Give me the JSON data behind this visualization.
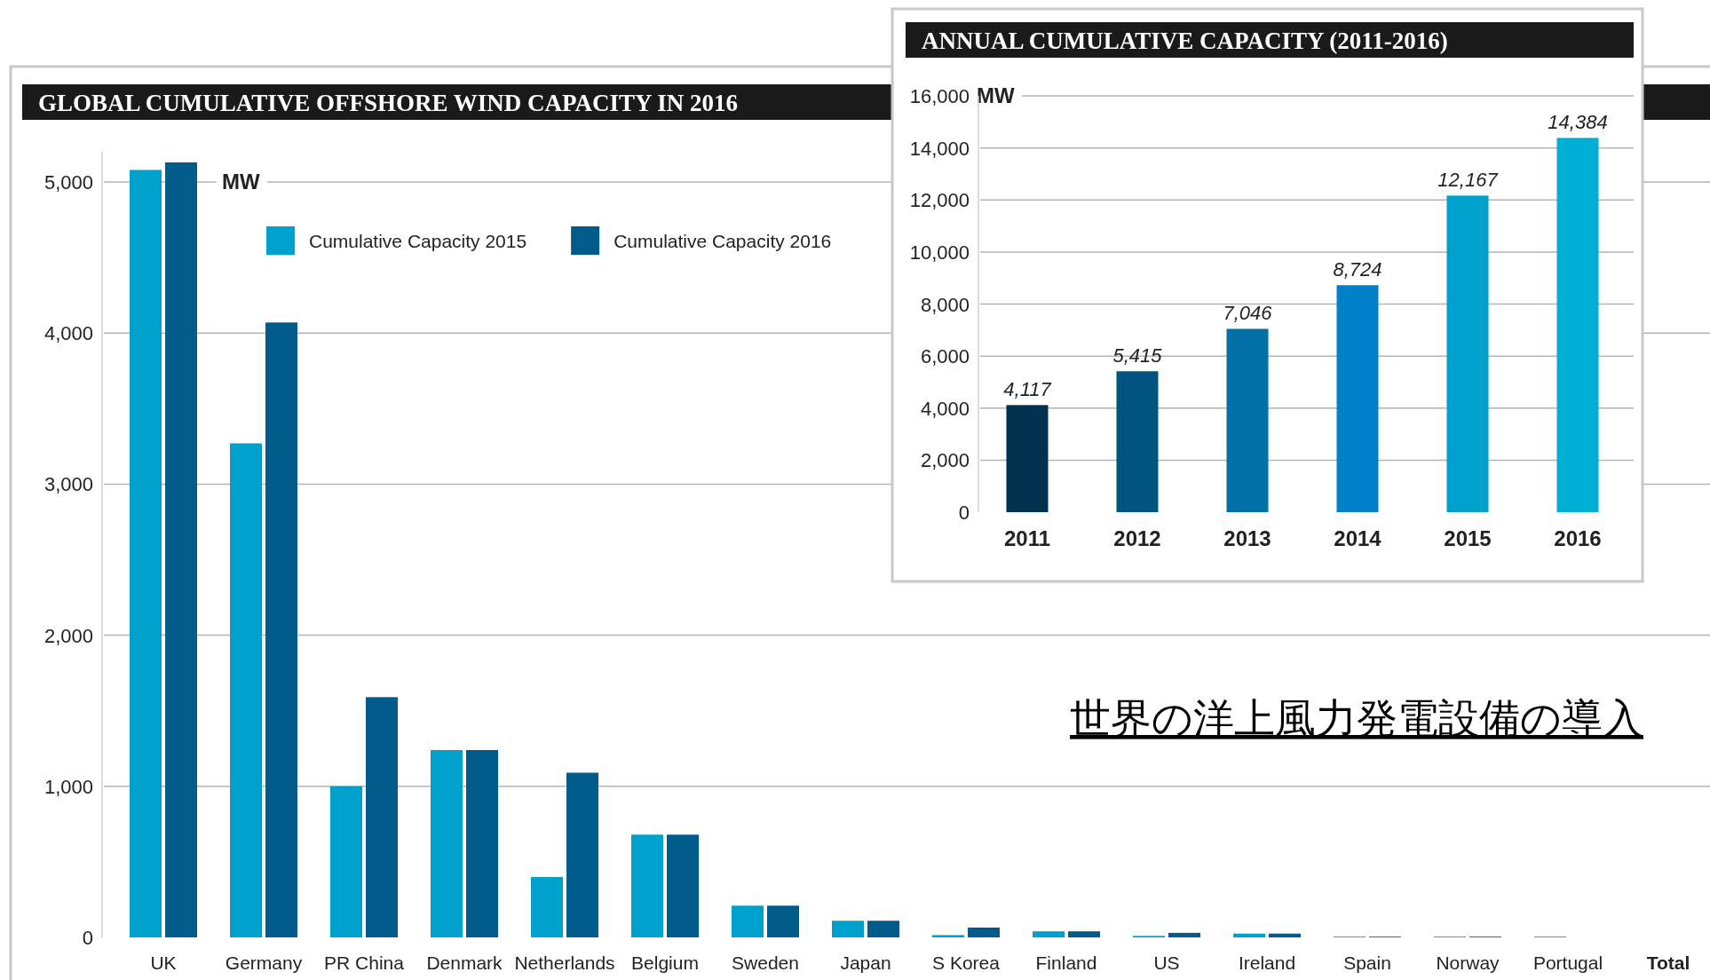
{
  "chart_data": [
    {
      "type": "bar",
      "title": "GLOBAL CUMULATIVE OFFSHORE WIND CAPACITY IN 2016",
      "ylabel": "MW",
      "categories": [
        "UK",
        "Germany",
        "PR China",
        "Denmark",
        "Netherlands",
        "Belgium",
        "Sweden",
        "Japan",
        "S Korea",
        "Finland",
        "US",
        "Ireland",
        "Spain",
        "Norway",
        "Portugal",
        "Total"
      ],
      "series": [
        {
          "name": "Cumulative Capacity 2015",
          "color": "#00a0cc",
          "values": [
            5080,
            3270,
            1000,
            1240,
            400,
            680,
            210,
            110,
            15,
            40,
            10,
            25,
            5,
            5,
            5,
            null
          ]
        },
        {
          "name": "Cumulative Capacity 2016",
          "color": "#005a8a",
          "values": [
            5130,
            4070,
            1590,
            1240,
            1090,
            680,
            210,
            110,
            65,
            40,
            30,
            25,
            5,
            5,
            null,
            null
          ]
        }
      ],
      "ylim": [
        0,
        5200
      ],
      "yticks": [
        0,
        {
          "value": 1000,
          "label": "1,000"
        },
        {
          "value": 2000,
          "label": "2,000"
        },
        {
          "value": 3000,
          "label": "3,000"
        },
        {
          "value": 4000,
          "label": "4,000"
        },
        {
          "value": 5000,
          "label": "5,000"
        }
      ],
      "grid": "y",
      "legend": "top left",
      "annotations": [
        "世界の洋上風力発電設備の導入"
      ]
    },
    {
      "type": "bar",
      "title": "ANNUAL CUMULATIVE CAPACITY (2011-2016)",
      "ylabel": "MW",
      "categories": [
        "2011",
        "2012",
        "2013",
        "2014",
        "2015",
        "2016"
      ],
      "values": [
        4117,
        5415,
        7046,
        8724,
        12167,
        14384
      ],
      "colors": [
        "#00314f",
        "#00547f",
        "#0070a6",
        "#0080c8",
        "#00a0cc",
        "#00b0d4"
      ],
      "value_labels": [
        "4,117",
        "5,415",
        "7,046",
        "8,724",
        "12,167",
        "14,384"
      ],
      "ylim": [
        0,
        16000
      ],
      "yticks": [
        0,
        {
          "value": 2000,
          "label": "2,000"
        },
        {
          "value": 4000,
          "label": "4,000"
        },
        {
          "value": 6000,
          "label": "6,000"
        },
        {
          "value": 8000,
          "label": "8,000"
        },
        {
          "value": 10000,
          "label": "10,000"
        },
        {
          "value": 12000,
          "label": "12,000"
        },
        {
          "value": 14000,
          "label": "14,000"
        },
        {
          "value": 16000,
          "label": "16,000"
        }
      ],
      "grid": "y"
    }
  ]
}
